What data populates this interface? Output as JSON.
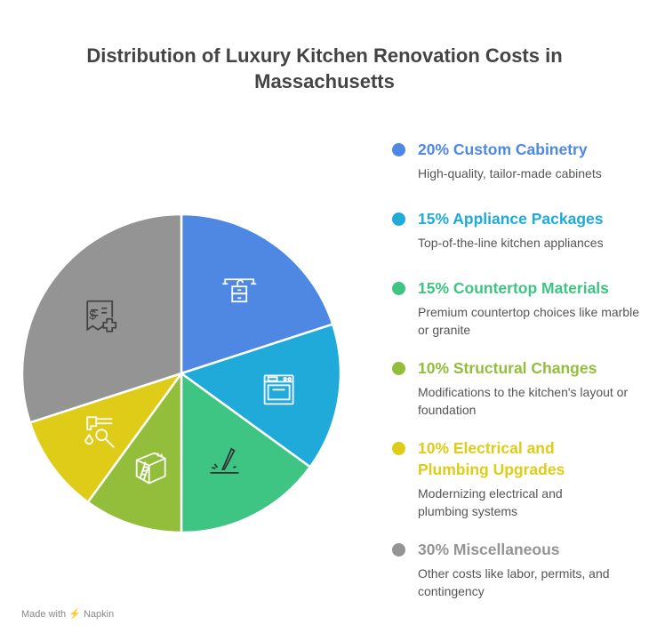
{
  "title": "Distribution of Luxury Kitchen Renovation Costs in Massachusetts",
  "footer": "Made with ⚡ Napkin",
  "chart_data": {
    "type": "pie",
    "title": "Distribution of Luxury Kitchen Renovation Costs in Massachusetts",
    "slices": [
      {
        "label": "20% Custom Cabinetry",
        "value": 20,
        "description": "High-quality, tailor-made cabinets",
        "color": "#4E88E3",
        "icon": "cabinet-sink-icon",
        "icon_color": "#ffffff"
      },
      {
        "label": "15% Appliance Packages",
        "value": 15,
        "description": "Top-of-the-line kitchen appliances",
        "color": "#1FAAD9",
        "icon": "oven-icon",
        "icon_color": "#ffffff"
      },
      {
        "label": "15% Countertop Materials",
        "value": 15,
        "description": "Premium countertop choices like marble or granite",
        "color": "#3EC483",
        "icon": "knife-icon",
        "icon_color": "#333333"
      },
      {
        "label": "10% Structural Changes",
        "value": 10,
        "description": "Modifications to the kitchen's layout or foundation",
        "color": "#92BE3C",
        "icon": "structure-ladder-icon",
        "icon_color": "#ffffff"
      },
      {
        "label": "10% Electrical and Plumbing Upgrades",
        "value": 10,
        "description": "Modernizing electrical and plumbing systems",
        "color": "#DFCC18",
        "icon": "faucet-wrench-icon",
        "icon_color": "#ffffff"
      },
      {
        "label": "30% Miscellaneous",
        "value": 30,
        "description": "Other costs like labor, permits, and contingency",
        "color": "#949494",
        "icon": "receipt-plus-icon",
        "icon_color": "#444444"
      }
    ],
    "legend": "right"
  }
}
